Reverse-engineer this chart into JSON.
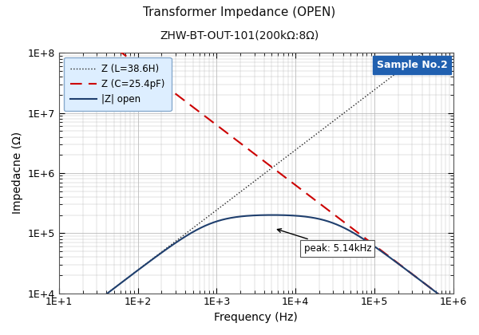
{
  "title_line1": "Transformer Impedance (OPEN)",
  "title_line2": "ZHW-BT-OUT-101(200kΩ:8Ω)",
  "sample_label": "Sample No.2",
  "xlabel": "Frequency (Hz)",
  "ylabel": "Impedacne (Ω)",
  "xlim": [
    10,
    1000000
  ],
  "ylim": [
    10000,
    100000000
  ],
  "peak_freq": 5140,
  "peak_label": "peak: 5.14kHz",
  "C_val": 2.54e-11,
  "L_val": 38.6,
  "R_val": 200000,
  "line_color": "#1f3f6e",
  "cap_color": "#cc0000",
  "ind_color": "#222222",
  "background_color": "#ffffff",
  "grid_color": "#bbbbbb",
  "legend_box_color": "#ddeeff"
}
